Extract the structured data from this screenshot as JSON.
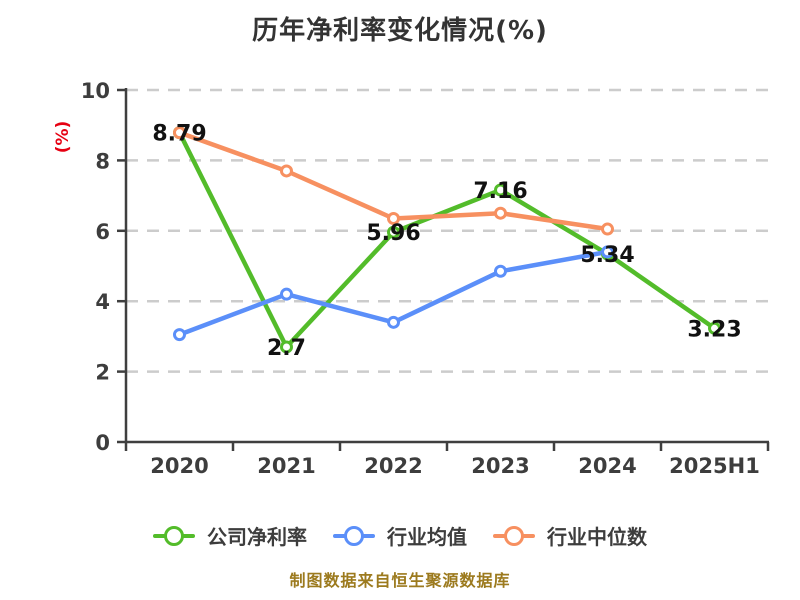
{
  "title": "历年净利率变化情况(%)",
  "y_axis_name": "(%)",
  "footer": "制图数据来自恒生聚源数据库",
  "colors": {
    "title_text": "#333333",
    "axis_line": "#3f3f3f",
    "axis_text": "#3d3d3d",
    "grid_line": "#cccccc",
    "y_axis_name_text": "#e60012",
    "data_label_text": "#111111",
    "footer_text": "#9c7a1e",
    "legend_text": "#3d3d3d",
    "company_series": "#53bc2a",
    "industry_avg_series": "#5b8ff9",
    "industry_median_series": "#f79060",
    "marker_fill": "#ffffff"
  },
  "chart_data": {
    "type": "line",
    "title": "历年净利率变化情况(%)",
    "ylabel": "(%)",
    "ylim": [
      0,
      10
    ],
    "y_ticks": [
      0,
      2,
      4,
      6,
      8,
      10
    ],
    "grid": "horizontal-dashed",
    "legend_position": "bottom",
    "categories": [
      "2020",
      "2021",
      "2022",
      "2023",
      "2024",
      "2025H1"
    ],
    "series": [
      {
        "key": "company-net-margin",
        "name": "公司净利率",
        "color": "#53bc2a",
        "values": [
          8.79,
          2.7,
          5.96,
          7.16,
          5.34,
          3.23
        ],
        "labeled": true
      },
      {
        "key": "industry-average",
        "name": "行业均值",
        "color": "#5b8ff9",
        "values": [
          3.05,
          4.2,
          3.4,
          4.85,
          5.4,
          null
        ],
        "labeled": false
      },
      {
        "key": "industry-median",
        "name": "行业中位数",
        "color": "#f79060",
        "values": [
          8.79,
          7.7,
          6.35,
          6.5,
          6.05,
          null
        ],
        "labeled": false
      }
    ],
    "data_labels": {
      "series": "公司净利率",
      "values": [
        "8.79",
        "2.7",
        "5.96",
        "7.16",
        "5.34",
        "3.23"
      ]
    }
  }
}
